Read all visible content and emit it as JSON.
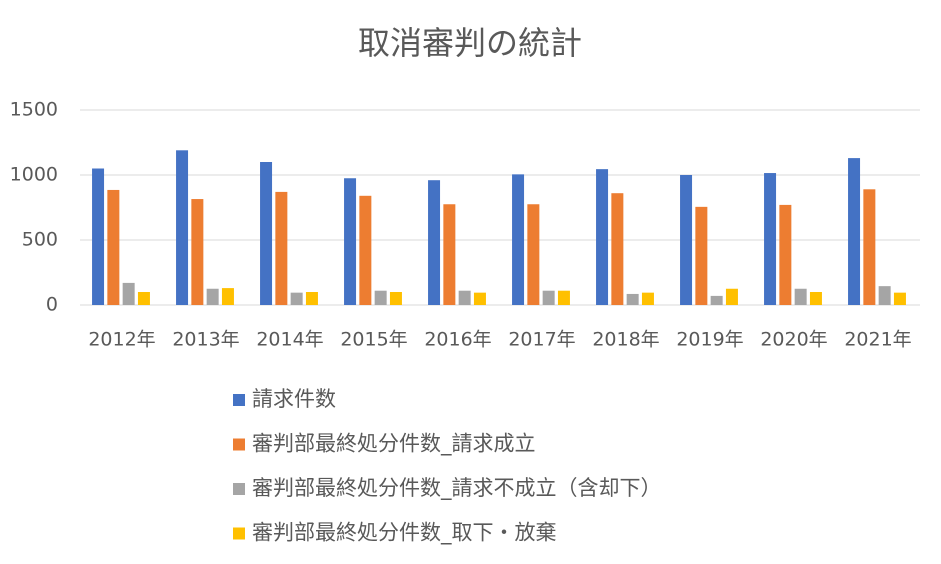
{
  "chart_data": {
    "type": "bar",
    "title": "取消審判の統計",
    "categories": [
      "2012年",
      "2013年",
      "2014年",
      "2015年",
      "2016年",
      "2017年",
      "2018年",
      "2019年",
      "2020年",
      "2021年"
    ],
    "series": [
      {
        "name": "請求件数",
        "color": "#4472c4",
        "values": [
          1050,
          1190,
          1100,
          975,
          960,
          1005,
          1045,
          1000,
          1015,
          1130
        ]
      },
      {
        "name": "審判部最終処分件数_請求成立",
        "color": "#ed7d31",
        "values": [
          885,
          815,
          870,
          840,
          775,
          775,
          860,
          755,
          770,
          890
        ]
      },
      {
        "name": "審判部最終処分件数_請求不成立（含却下）",
        "color": "#a5a5a5",
        "values": [
          170,
          125,
          95,
          110,
          110,
          110,
          85,
          70,
          125,
          145
        ]
      },
      {
        "name": "審判部最終処分件数_取下・放棄",
        "color": "#ffc000",
        "values": [
          100,
          130,
          100,
          100,
          95,
          110,
          95,
          125,
          100,
          95
        ]
      }
    ],
    "ylim": [
      0,
      1500
    ],
    "yticks": [
      0,
      500,
      1000,
      1500
    ],
    "grid": true,
    "legend": "bottom"
  }
}
